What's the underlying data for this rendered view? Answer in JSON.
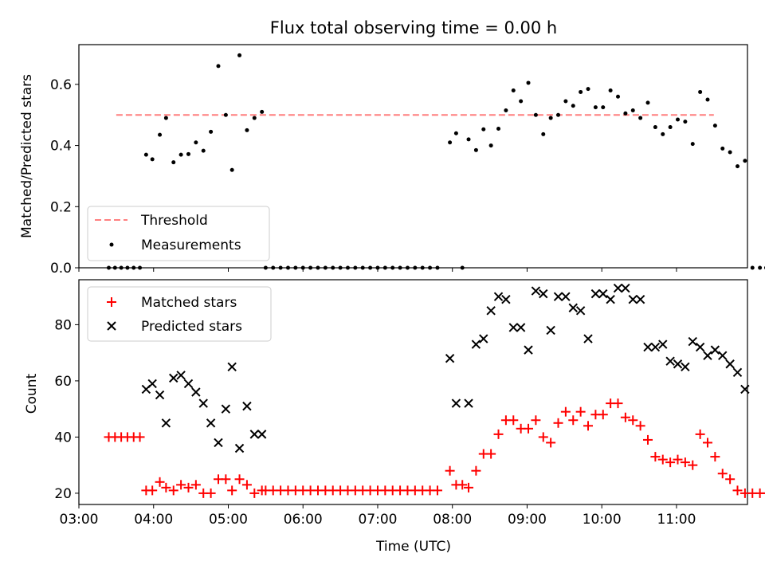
{
  "chart_data": [
    {
      "type": "scatter",
      "title": "Flux total observing time = 0.00 h",
      "xlabel": "",
      "ylabel": "Matched/Predicted stars",
      "xlim": [
        "03:00",
        "11:57"
      ],
      "ylim": [
        0,
        0.73
      ],
      "yticks": [
        "0.0",
        "0.2",
        "0.4",
        "0.6"
      ],
      "grid": false,
      "legend": "lower-left",
      "threshold": {
        "name": "Threshold",
        "value": 0.5,
        "x_start": "03:30",
        "x_end": "11:30",
        "color": "#ff7f7f",
        "style": "dashed"
      },
      "series": [
        {
          "name": "Measurements",
          "color": "#000000",
          "marker": "dot",
          "points": [
            [
              "03:24",
              0
            ],
            [
              "03:29",
              0
            ],
            [
              "03:34",
              0
            ],
            [
              "03:39",
              0
            ],
            [
              "03:44",
              0
            ],
            [
              "03:49",
              0
            ],
            [
              "03:54",
              0.37
            ],
            [
              "03:59",
              0.355
            ],
            [
              "04:05",
              0.435
            ],
            [
              "04:10",
              0.49
            ],
            [
              "04:16",
              0.345
            ],
            [
              "04:22",
              0.37
            ],
            [
              "04:28",
              0.372
            ],
            [
              "04:34",
              0.41
            ],
            [
              "04:40",
              0.383
            ],
            [
              "04:46",
              0.445
            ],
            [
              "04:52",
              0.66
            ],
            [
              "04:58",
              0.5
            ],
            [
              "05:03",
              0.32
            ],
            [
              "05:09",
              0.695
            ],
            [
              "05:15",
              0.45
            ],
            [
              "05:21",
              0.49
            ],
            [
              "05:27",
              0.51
            ],
            [
              "05:30",
              0
            ],
            [
              "05:36",
              0
            ],
            [
              "05:42",
              0
            ],
            [
              "05:48",
              0
            ],
            [
              "05:54",
              0
            ],
            [
              "06:00",
              0
            ],
            [
              "06:06",
              0
            ],
            [
              "06:12",
              0
            ],
            [
              "06:18",
              0
            ],
            [
              "06:24",
              0
            ],
            [
              "06:30",
              0
            ],
            [
              "06:36",
              0
            ],
            [
              "06:42",
              0
            ],
            [
              "06:48",
              0
            ],
            [
              "06:54",
              0
            ],
            [
              "07:00",
              0
            ],
            [
              "07:06",
              0
            ],
            [
              "07:12",
              0
            ],
            [
              "07:18",
              0
            ],
            [
              "07:24",
              0
            ],
            [
              "07:30",
              0
            ],
            [
              "07:36",
              0
            ],
            [
              "07:42",
              0
            ],
            [
              "07:48",
              0
            ],
            [
              "07:58",
              0.41
            ],
            [
              "08:03",
              0.44
            ],
            [
              "08:08",
              0
            ],
            [
              "08:13",
              0.42
            ],
            [
              "08:19",
              0.385
            ],
            [
              "08:25",
              0.453
            ],
            [
              "08:31",
              0.4
            ],
            [
              "08:37",
              0.455
            ],
            [
              "08:43",
              0.515
            ],
            [
              "08:49",
              0.58
            ],
            [
              "08:55",
              0.545
            ],
            [
              "09:01",
              0.605
            ],
            [
              "09:07",
              0.5
            ],
            [
              "09:13",
              0.437
            ],
            [
              "09:19",
              0.49
            ],
            [
              "09:25",
              0.5
            ],
            [
              "09:31",
              0.545
            ],
            [
              "09:37",
              0.53
            ],
            [
              "09:43",
              0.575
            ],
            [
              "09:49",
              0.585
            ],
            [
              "09:55",
              0.525
            ],
            [
              "10:01",
              0.525
            ],
            [
              "10:07",
              0.58
            ],
            [
              "10:13",
              0.56
            ],
            [
              "10:19",
              0.505
            ],
            [
              "10:25",
              0.515
            ],
            [
              "10:31",
              0.49
            ],
            [
              "10:37",
              0.54
            ],
            [
              "10:43",
              0.46
            ],
            [
              "10:49",
              0.437
            ],
            [
              "10:55",
              0.46
            ],
            [
              "11:01",
              0.485
            ],
            [
              "11:07",
              0.478
            ],
            [
              "11:13",
              0.405
            ],
            [
              "11:19",
              0.575
            ],
            [
              "11:25",
              0.55
            ],
            [
              "11:31",
              0.465
            ],
            [
              "11:37",
              0.39
            ],
            [
              "11:43",
              0.378
            ],
            [
              "11:49",
              0.332
            ],
            [
              "11:55",
              0.35
            ],
            [
              "12:01",
              0
            ],
            [
              "12:07",
              0
            ],
            [
              "12:12",
              0
            ]
          ]
        }
      ]
    },
    {
      "type": "scatter",
      "title": "",
      "xlabel": "Time (UTC)",
      "ylabel": "Count",
      "xlim": [
        "03:00",
        "11:57"
      ],
      "ylim": [
        16,
        96
      ],
      "yticks": [
        "20",
        "40",
        "60",
        "80"
      ],
      "xticks": [
        "03:00",
        "04:00",
        "05:00",
        "06:00",
        "07:00",
        "08:00",
        "09:00",
        "10:00",
        "11:00"
      ],
      "grid": false,
      "legend": "upper-left",
      "series": [
        {
          "name": "Matched stars",
          "color": "#ff0000",
          "marker": "plus",
          "points": [
            [
              "03:24",
              40
            ],
            [
              "03:29",
              40
            ],
            [
              "03:34",
              40
            ],
            [
              "03:39",
              40
            ],
            [
              "03:44",
              40
            ],
            [
              "03:49",
              40
            ],
            [
              "03:54",
              21
            ],
            [
              "03:59",
              21
            ],
            [
              "04:05",
              24
            ],
            [
              "04:10",
              22
            ],
            [
              "04:16",
              21
            ],
            [
              "04:22",
              23
            ],
            [
              "04:28",
              22
            ],
            [
              "04:34",
              23
            ],
            [
              "04:40",
              20
            ],
            [
              "04:46",
              20
            ],
            [
              "04:52",
              25
            ],
            [
              "04:58",
              25
            ],
            [
              "05:03",
              21
            ],
            [
              "05:09",
              25
            ],
            [
              "05:15",
              23
            ],
            [
              "05:21",
              20
            ],
            [
              "05:27",
              21
            ],
            [
              "05:30",
              21
            ],
            [
              "05:36",
              21
            ],
            [
              "05:42",
              21
            ],
            [
              "05:48",
              21
            ],
            [
              "05:54",
              21
            ],
            [
              "06:00",
              21
            ],
            [
              "06:06",
              21
            ],
            [
              "06:12",
              21
            ],
            [
              "06:18",
              21
            ],
            [
              "06:24",
              21
            ],
            [
              "06:30",
              21
            ],
            [
              "06:36",
              21
            ],
            [
              "06:42",
              21
            ],
            [
              "06:48",
              21
            ],
            [
              "06:54",
              21
            ],
            [
              "07:00",
              21
            ],
            [
              "07:06",
              21
            ],
            [
              "07:12",
              21
            ],
            [
              "07:18",
              21
            ],
            [
              "07:24",
              21
            ],
            [
              "07:30",
              21
            ],
            [
              "07:36",
              21
            ],
            [
              "07:42",
              21
            ],
            [
              "07:48",
              21
            ],
            [
              "07:58",
              28
            ],
            [
              "08:03",
              23
            ],
            [
              "08:08",
              23
            ],
            [
              "08:13",
              22
            ],
            [
              "08:19",
              28
            ],
            [
              "08:25",
              34
            ],
            [
              "08:31",
              34
            ],
            [
              "08:37",
              41
            ],
            [
              "08:43",
              46
            ],
            [
              "08:49",
              46
            ],
            [
              "08:55",
              43
            ],
            [
              "09:01",
              43
            ],
            [
              "09:07",
              46
            ],
            [
              "09:13",
              40
            ],
            [
              "09:19",
              38
            ],
            [
              "09:25",
              45
            ],
            [
              "09:31",
              49
            ],
            [
              "09:37",
              46
            ],
            [
              "09:43",
              49
            ],
            [
              "09:49",
              44
            ],
            [
              "09:55",
              48
            ],
            [
              "10:01",
              48
            ],
            [
              "10:07",
              52
            ],
            [
              "10:13",
              52
            ],
            [
              "10:19",
              47
            ],
            [
              "10:25",
              46
            ],
            [
              "10:31",
              44
            ],
            [
              "10:37",
              39
            ],
            [
              "10:43",
              33
            ],
            [
              "10:49",
              32
            ],
            [
              "10:55",
              31
            ],
            [
              "11:01",
              32
            ],
            [
              "11:07",
              31
            ],
            [
              "11:13",
              30
            ],
            [
              "11:19",
              41
            ],
            [
              "11:25",
              38
            ],
            [
              "11:31",
              33
            ],
            [
              "11:37",
              27
            ],
            [
              "11:43",
              25
            ],
            [
              "11:49",
              21
            ],
            [
              "11:55",
              20
            ],
            [
              "12:01",
              20
            ],
            [
              "12:07",
              20
            ],
            [
              "12:12",
              20
            ]
          ]
        },
        {
          "name": "Predicted stars",
          "color": "#000000",
          "marker": "x",
          "points": [
            [
              "03:54",
              57
            ],
            [
              "03:59",
              59
            ],
            [
              "04:05",
              55
            ],
            [
              "04:10",
              45
            ],
            [
              "04:16",
              61
            ],
            [
              "04:22",
              62
            ],
            [
              "04:28",
              59
            ],
            [
              "04:34",
              56
            ],
            [
              "04:40",
              52
            ],
            [
              "04:46",
              45
            ],
            [
              "04:52",
              38
            ],
            [
              "04:58",
              50
            ],
            [
              "05:03",
              65
            ],
            [
              "05:09",
              36
            ],
            [
              "05:15",
              51
            ],
            [
              "05:21",
              41
            ],
            [
              "05:27",
              41
            ],
            [
              "07:58",
              68
            ],
            [
              "08:03",
              52
            ],
            [
              "08:13",
              52
            ],
            [
              "08:19",
              73
            ],
            [
              "08:25",
              75
            ],
            [
              "08:31",
              85
            ],
            [
              "08:37",
              90
            ],
            [
              "08:43",
              89
            ],
            [
              "08:49",
              79
            ],
            [
              "08:55",
              79
            ],
            [
              "09:01",
              71
            ],
            [
              "09:07",
              92
            ],
            [
              "09:13",
              91
            ],
            [
              "09:19",
              78
            ],
            [
              "09:25",
              90
            ],
            [
              "09:31",
              90
            ],
            [
              "09:37",
              86
            ],
            [
              "09:43",
              85
            ],
            [
              "09:49",
              75
            ],
            [
              "09:55",
              91
            ],
            [
              "10:01",
              91
            ],
            [
              "10:07",
              89
            ],
            [
              "10:13",
              93
            ],
            [
              "10:19",
              93
            ],
            [
              "10:25",
              89
            ],
            [
              "10:31",
              89
            ],
            [
              "10:37",
              72
            ],
            [
              "10:43",
              72
            ],
            [
              "10:49",
              73
            ],
            [
              "10:55",
              67
            ],
            [
              "11:01",
              66
            ],
            [
              "11:07",
              65
            ],
            [
              "11:13",
              74
            ],
            [
              "11:19",
              72
            ],
            [
              "11:25",
              69
            ],
            [
              "11:31",
              71
            ],
            [
              "11:37",
              69
            ],
            [
              "11:43",
              66
            ],
            [
              "11:49",
              63
            ],
            [
              "11:55",
              57
            ]
          ]
        }
      ]
    }
  ]
}
